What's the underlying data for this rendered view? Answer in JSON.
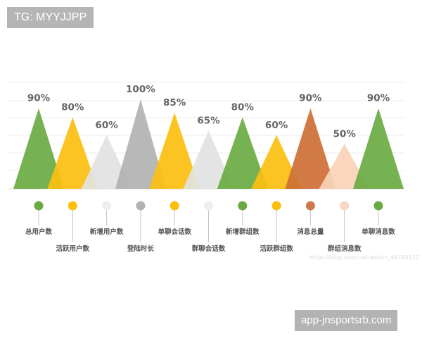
{
  "header_tag": "TG: MYYJJPP",
  "footer_domain": "app-jnsportsrb.com",
  "watermark_text": "https://blog.csdn.net/weixin_44784152",
  "chart_data": {
    "type": "area",
    "categories": [
      "总用户数",
      "活跃用户数",
      "新增用户数",
      "登陆时长",
      "单聊会话数",
      "群聊会话数",
      "新增群组数",
      "活跃群组数",
      "消息总量",
      "群组消息数",
      "单聊消息数"
    ],
    "values": [
      90,
      80,
      60,
      100,
      85,
      65,
      80,
      60,
      90,
      50,
      90
    ],
    "value_labels": [
      "90%",
      "80%",
      "60%",
      "100%",
      "85%",
      "65%",
      "80%",
      "60%",
      "90%",
      "50%",
      "90%"
    ],
    "colors": [
      "#6aaa43",
      "#fbbf0f",
      "#e2e2e2",
      "#b2b2b2",
      "#fbbf0f",
      "#e2e2e2",
      "#6aaa43",
      "#fbbf0f",
      "#cd6f35",
      "#f8d2b7",
      "#6aaa43"
    ],
    "dot_colors": [
      "#6aaa43",
      "#fbbf0f",
      "#eeeeee",
      "#b2b2b2",
      "#fbbf0f",
      "#eeeeee",
      "#6aaa43",
      "#fbbf0f",
      "#cd7a48",
      "#f8d8c4",
      "#6aaa43"
    ],
    "ylim": [
      0,
      100
    ],
    "grid": true
  }
}
